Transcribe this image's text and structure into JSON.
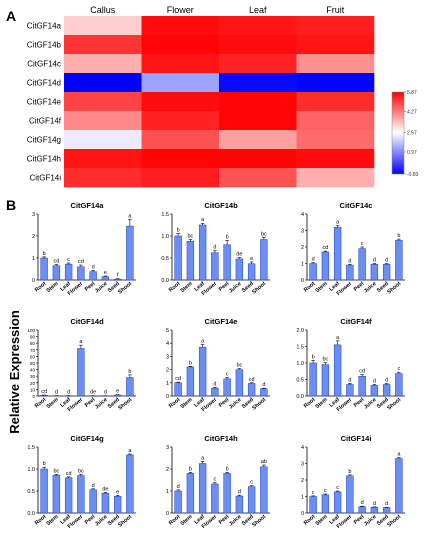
{
  "panel_labels": {
    "a": "A",
    "b": "B"
  },
  "shared_axis_label": "Relative Expression",
  "chart_data": [
    {
      "type": "heatmap",
      "columns": [
        "Callus",
        "Flower",
        "Leaf",
        "Fruit"
      ],
      "rows": [
        "CitGF14a",
        "CitGF14b",
        "CitGF14c",
        "CitGF14d",
        "CitGF14e",
        "CitGF14f",
        "CitGF14g",
        "CitGF14h",
        "CitGF14i"
      ],
      "values": [
        [
          3.2,
          5.7,
          5.6,
          5.5
        ],
        [
          5.2,
          5.8,
          5.7,
          5.6
        ],
        [
          3.6,
          5.6,
          5.4,
          4.0
        ],
        [
          -0.83,
          1.3,
          -0.7,
          -0.8
        ],
        [
          5.0,
          5.7,
          5.8,
          5.3
        ],
        [
          4.1,
          5.4,
          5.8,
          4.6
        ],
        [
          2.3,
          4.8,
          3.8,
          4.5
        ],
        [
          5.6,
          5.8,
          5.8,
          5.7
        ],
        [
          5.3,
          5.5,
          4.8,
          3.6
        ]
      ],
      "colorbar": {
        "ticks": [
          -0.83,
          0.97,
          2.57,
          4.27,
          5.87
        ],
        "tick_labels": [
          "-0.83",
          "0.97",
          "2.57",
          "4.27",
          "5.87"
        ],
        "colors": {
          "low": "#0000ff",
          "mid": "#ffffff",
          "high": "#ff0000"
        }
      }
    },
    {
      "type": "bar",
      "title": "CitGF14a",
      "categories": [
        "Root",
        "Stem",
        "Leaf",
        "Flower",
        "Peel",
        "Juice",
        "Seed",
        "Shoot"
      ],
      "values": [
        1.0,
        0.65,
        0.72,
        0.6,
        0.38,
        0.15,
        0.04,
        2.45
      ],
      "errors": [
        0.05,
        0.05,
        0.05,
        0.08,
        0.05,
        0.03,
        0.02,
        0.3
      ],
      "letters": [
        "b",
        "cd",
        "c",
        "cd",
        "d",
        "e",
        "f",
        "a"
      ],
      "ylim": [
        0,
        3
      ],
      "yticks": [
        "0",
        "1",
        "2",
        "3"
      ]
    },
    {
      "type": "bar",
      "title": "CitGF14b",
      "categories": [
        "Root",
        "Stem",
        "Leaf",
        "Flower",
        "Peel",
        "Juice",
        "Seed",
        "Shoot"
      ],
      "values": [
        1.0,
        0.88,
        1.25,
        0.62,
        0.8,
        0.48,
        0.37,
        0.92
      ],
      "errors": [
        0.06,
        0.04,
        0.04,
        0.05,
        0.1,
        0.03,
        0.04,
        0.05
      ],
      "letters": [
        "b",
        "bc",
        "a",
        "d",
        "b",
        "de",
        "e",
        "bc"
      ],
      "ylim": [
        0,
        1.5
      ],
      "yticks": [
        "0.0",
        "0.5",
        "1.0",
        "1.5"
      ]
    },
    {
      "type": "bar",
      "title": "CitGF14c",
      "categories": [
        "Root",
        "Stem",
        "Leaf",
        "Flower",
        "Peel",
        "Juice",
        "Seed",
        "Shoot"
      ],
      "values": [
        1.0,
        1.7,
        3.2,
        0.9,
        1.9,
        0.95,
        0.95,
        2.4
      ],
      "errors": [
        0.05,
        0.05,
        0.1,
        0.05,
        0.1,
        0.05,
        0.05,
        0.08
      ],
      "letters": [
        "d",
        "cd",
        "a",
        "d",
        "c",
        "d",
        "d",
        "b"
      ],
      "ylim": [
        0,
        4
      ],
      "yticks": [
        "0",
        "1",
        "2",
        "3",
        "4"
      ]
    },
    {
      "type": "bar",
      "title": "CitGF14d",
      "categories": [
        "Root",
        "Stem",
        "Leaf",
        "Flower",
        "Peel",
        "Juice",
        "Seed",
        "Shoot"
      ],
      "values": [
        1.0,
        0.3,
        0.4,
        72,
        0.3,
        0.2,
        1.5,
        28
      ],
      "errors": [
        0.5,
        0.2,
        0.2,
        5,
        0.2,
        0.2,
        0.5,
        4
      ],
      "letters": [
        "cd",
        "d",
        "d",
        "a",
        "de",
        "d",
        "e",
        "b"
      ],
      "ylim": [
        0,
        100
      ],
      "yticks": [
        "0",
        "10",
        "20",
        "30",
        "40",
        "50",
        "60",
        "70",
        "80",
        "90",
        "100"
      ]
    },
    {
      "type": "bar",
      "title": "CitGF14e",
      "categories": [
        "Root",
        "Stem",
        "Leaf",
        "Flower",
        "Peel",
        "Juice",
        "Seed",
        "Shoot"
      ],
      "values": [
        1.0,
        2.2,
        3.7,
        0.6,
        1.3,
        2.0,
        0.95,
        0.55
      ],
      "errors": [
        0.05,
        0.05,
        0.2,
        0.05,
        0.1,
        0.08,
        0.05,
        0.04
      ],
      "letters": [
        "cd",
        "b",
        "a",
        "d",
        "c",
        "bc",
        "cd",
        "d"
      ],
      "ylim": [
        0,
        5
      ],
      "yticks": [
        "0",
        "1",
        "2",
        "3",
        "4",
        "5"
      ]
    },
    {
      "type": "bar",
      "title": "CitGF14f",
      "categories": [
        "Root",
        "Stem",
        "Leaf",
        "Flower",
        "Peel",
        "Juice",
        "Seed",
        "Shoot"
      ],
      "values": [
        1.0,
        0.95,
        1.55,
        0.35,
        0.6,
        0.32,
        0.35,
        0.68
      ],
      "errors": [
        0.08,
        0.06,
        0.12,
        0.03,
        0.05,
        0.03,
        0.03,
        0.04
      ],
      "letters": [
        "b",
        "bc",
        "a",
        "d",
        "cd",
        "d",
        "d",
        "c"
      ],
      "ylim": [
        0,
        2
      ],
      "yticks": [
        "0.0",
        "0.5",
        "1.0",
        "1.5",
        "2.0"
      ]
    },
    {
      "type": "bar",
      "title": "CitGF14g",
      "categories": [
        "Root",
        "Stem",
        "Leaf",
        "Flower",
        "Peel",
        "Juice",
        "Seed",
        "Shoot"
      ],
      "values": [
        1.0,
        0.86,
        0.8,
        0.85,
        0.53,
        0.45,
        0.38,
        1.32
      ],
      "errors": [
        0.04,
        0.02,
        0.02,
        0.03,
        0.02,
        0.02,
        0.02,
        0.02
      ],
      "letters": [
        "b",
        "bc",
        "cd",
        "bc",
        "d",
        "de",
        "e",
        "a"
      ],
      "ylim": [
        0,
        1.5
      ],
      "yticks": [
        "0.0",
        "0.5",
        "1.0",
        "1.5"
      ]
    },
    {
      "type": "bar",
      "title": "CitGF14h",
      "categories": [
        "Root",
        "Stem",
        "Leaf",
        "Flower",
        "Peel",
        "Juice",
        "Seed",
        "Shoot"
      ],
      "values": [
        1.0,
        1.8,
        2.25,
        1.32,
        1.8,
        0.77,
        1.2,
        2.1
      ],
      "errors": [
        0.05,
        0.05,
        0.1,
        0.06,
        0.05,
        0.04,
        0.04,
        0.08
      ],
      "letters": [
        "d",
        "b",
        "a",
        "c",
        "b",
        "d",
        "c",
        "ab"
      ],
      "ylim": [
        0,
        3
      ],
      "yticks": [
        "0",
        "1",
        "2",
        "3"
      ]
    },
    {
      "type": "bar",
      "title": "CitGF14i",
      "categories": [
        "Root",
        "Stem",
        "Leaf",
        "Flower",
        "Peel",
        "Juice",
        "Seed",
        "Shoot"
      ],
      "values": [
        1.0,
        1.1,
        1.28,
        2.25,
        0.38,
        0.35,
        0.33,
        3.3
      ],
      "errors": [
        0.04,
        0.05,
        0.05,
        0.06,
        0.03,
        0.02,
        0.02,
        0.05
      ],
      "letters": [
        "c",
        "c",
        "c",
        "b",
        "d",
        "d",
        "d",
        "a"
      ],
      "ylim": [
        0,
        4
      ],
      "yticks": [
        "0",
        "1",
        "2",
        "3",
        "4"
      ]
    }
  ]
}
